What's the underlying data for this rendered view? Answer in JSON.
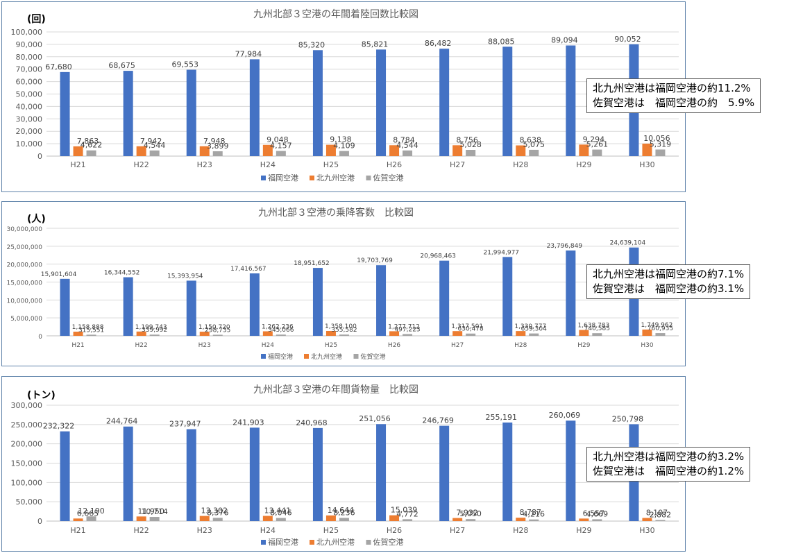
{
  "chart_data": [
    {
      "type": "bar",
      "title": "九州北部３空港の年間着陸回数比較図",
      "unit_label": "(回)",
      "categories": [
        "H21",
        "H22",
        "H23",
        "H24",
        "H25",
        "H26",
        "H27",
        "H28",
        "H29",
        "H30"
      ],
      "ylim": [
        0,
        100000
      ],
      "yticks": [
        0,
        10000,
        20000,
        30000,
        40000,
        50000,
        60000,
        70000,
        80000,
        90000,
        100000
      ],
      "ytick_labels": [
        "0",
        "10,000",
        "20,000",
        "30,000",
        "40,000",
        "50,000",
        "60,000",
        "70,000",
        "80,000",
        "90,000",
        "100,000"
      ],
      "legend_position": "bottom",
      "series": [
        {
          "name": "福岡空港",
          "color": "#4472c4",
          "values": [
            67680,
            68675,
            69553,
            77984,
            85320,
            85821,
            86482,
            88085,
            89094,
            90052
          ],
          "labels": [
            "67,680",
            "68,675",
            "69,553",
            "77,984",
            "85,320",
            "85,821",
            "86,482",
            "88,085",
            "89,094",
            "90,052"
          ]
        },
        {
          "name": "北九州空港",
          "color": "#ed7d31",
          "values": [
            7863,
            7942,
            7948,
            9048,
            9138,
            8784,
            8756,
            8638,
            9294,
            10056
          ],
          "labels": [
            "7,863",
            "7,942",
            "7,948",
            "9,048",
            "9,138",
            "8,784",
            "8,756",
            "8,638",
            "9,294",
            "10,056"
          ]
        },
        {
          "name": "佐賀空港",
          "color": "#a5a5a5",
          "values": [
            4622,
            4544,
            3899,
            4157,
            4109,
            4544,
            5028,
            5075,
            5261,
            5319
          ],
          "labels": [
            "4,622",
            "4,544",
            "3,899",
            "4,157",
            "4,109",
            "4,544",
            "5,028",
            "5,075",
            "5,261",
            "5,319"
          ]
        }
      ],
      "note_lines": [
        "北九州空港は福岡空港の約11.2%",
        "佐賀空港は　福岡空港の約　5.9%"
      ]
    },
    {
      "type": "bar",
      "title": "九州北部３空港の乗降客数　比較図",
      "unit_label": "(人)",
      "categories": [
        "H21",
        "H22",
        "H23",
        "H24",
        "H25",
        "H26",
        "H27",
        "H28",
        "H29",
        "H30"
      ],
      "ylim": [
        0,
        30000000
      ],
      "yticks": [
        0,
        5000000,
        10000000,
        15000000,
        20000000,
        25000000,
        30000000
      ],
      "ytick_labels": [
        "0",
        "5,000,000",
        "10,000,000",
        "15,000,000",
        "20,000,000",
        "25,000,000",
        "30,000,000"
      ],
      "legend_position": "bottom",
      "series": [
        {
          "name": "福岡空港",
          "color": "#4472c4",
          "values": [
            15901604,
            16344552,
            15393954,
            17416567,
            18951652,
            19703769,
            20968463,
            21994977,
            23796849,
            24639104
          ],
          "labels": [
            "15,901,604",
            "16,344,552",
            "15,393,954",
            "17,416,567",
            "18,951,652",
            "19,703,769",
            "20,968,463",
            "21,994,977",
            "23,796,849",
            "24,639,104"
          ]
        },
        {
          "name": "北九州空港",
          "color": "#ed7d31",
          "values": [
            1158888,
            1199743,
            1150720,
            1262236,
            1358100,
            1277712,
            1317501,
            1330777,
            1638783,
            1749962
          ],
          "labels": [
            "1,158,888",
            "1,199,743",
            "1,150,720",
            "1,262,236",
            "1,358,100",
            "1,277,712",
            "1,317,501",
            "1,330,777",
            "1,638,783",
            "1,749,962"
          ]
        },
        {
          "name": "佐賀空港",
          "color": "#a5a5a5",
          "values": [
            315551,
            339992,
            298735,
            345066,
            355582,
            497223,
            630478,
            659304,
            740585,
            760935
          ],
          "labels": [
            "315,551",
            "339,992",
            "298,735",
            "345,066",
            "355,582",
            "497,223",
            "630,478",
            "659,304",
            "740,585",
            "760,935"
          ]
        }
      ],
      "note_lines": [
        "北九州空港は福岡空港の約7.1%",
        "佐賀空港は　福岡空港の約3.1%"
      ]
    },
    {
      "type": "bar",
      "title": "九州北部３空港の年間貨物量　比較図",
      "unit_label": "(トン)",
      "categories": [
        "H21",
        "H22",
        "H23",
        "H24",
        "H25",
        "H26",
        "H27",
        "H28",
        "H29",
        "H30"
      ],
      "ylim": [
        0,
        300000
      ],
      "yticks": [
        0,
        50000,
        100000,
        150000,
        200000,
        250000,
        300000
      ],
      "ytick_labels": [
        "0",
        "50,000",
        "100,000",
        "150,000",
        "200,000",
        "250,000",
        "300,000"
      ],
      "legend_position": "bottom",
      "series": [
        {
          "name": "福岡空港",
          "color": "#4472c4",
          "values": [
            232322,
            244764,
            237947,
            241903,
            240968,
            251056,
            246769,
            255191,
            260069,
            250798
          ],
          "labels": [
            "232,322",
            "244,764",
            "237,947",
            "241,903",
            "240,968",
            "251,056",
            "246,769",
            "255,191",
            "260,069",
            "250,798"
          ]
        },
        {
          "name": "北九州空港",
          "color": "#ed7d31",
          "values": [
            6665,
            11950,
            13302,
            13441,
            14644,
            15039,
            7932,
            8787,
            6557,
            8107
          ],
          "labels": [
            "6,665",
            "11,950",
            "13,302",
            "13,441",
            "14,644",
            "15,039",
            "7,932",
            "8,787",
            "6,557",
            "8,107"
          ]
        },
        {
          "name": "佐賀空港",
          "color": "#a5a5a5",
          "values": [
            12190,
            10714,
            8376,
            8046,
            8236,
            4772,
            5050,
            4216,
            4669,
            2882
          ],
          "labels": [
            "12,190",
            "10,714",
            "8,376",
            "8,046",
            "8,236",
            "4,772",
            "5,050",
            "4,216",
            "4,669",
            "2,882"
          ]
        }
      ],
      "note_lines": [
        "北九州空港は福岡空港の約3.2%",
        "佐賀空港は　福岡空港の約1.2%"
      ]
    }
  ]
}
